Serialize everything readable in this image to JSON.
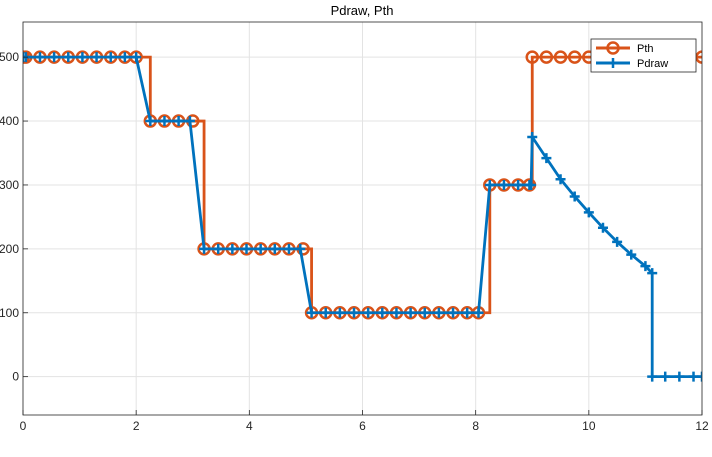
{
  "chart_data": {
    "type": "line",
    "title": "Pdraw, Pth",
    "xlabel": "",
    "ylabel": "",
    "xlim": [
      0,
      12
    ],
    "ylim": [
      -60,
      555
    ],
    "x_ticks": [
      0,
      2,
      4,
      6,
      8,
      10,
      12
    ],
    "y_ticks": [
      0,
      100,
      200,
      300,
      400,
      500
    ],
    "x_tick_labels": [
      "0",
      "2",
      "4",
      "6",
      "8",
      "10",
      "12"
    ],
    "y_tick_labels": [
      "0",
      "100",
      "200",
      "300",
      "400",
      "500"
    ],
    "grid": true,
    "legend_position": "top-right",
    "series": [
      {
        "name": "Pth",
        "color": "#D95319",
        "marker": "circle",
        "render": "stairs",
        "x": [
          0,
          0.05,
          0.3,
          0.55,
          0.8,
          1.05,
          1.3,
          1.55,
          1.8,
          2.0,
          2.25,
          2.5,
          2.75,
          3.0,
          3.2,
          3.45,
          3.7,
          3.95,
          4.2,
          4.45,
          4.7,
          4.95,
          5.1,
          5.35,
          5.6,
          5.85,
          6.1,
          6.35,
          6.6,
          6.85,
          7.1,
          7.35,
          7.6,
          7.85,
          8.05,
          8.25,
          8.5,
          8.75,
          8.95,
          9.0,
          9.25,
          9.5,
          9.75,
          10.0,
          10.25,
          11.8,
          12.0
        ],
        "y": [
          500,
          500,
          500,
          500,
          500,
          500,
          500,
          500,
          500,
          500,
          400,
          400,
          400,
          400,
          200,
          200,
          200,
          200,
          200,
          200,
          200,
          200,
          100,
          100,
          100,
          100,
          100,
          100,
          100,
          100,
          100,
          100,
          100,
          100,
          100,
          300,
          300,
          300,
          300,
          500,
          500,
          500,
          500,
          500,
          500,
          500,
          500
        ]
      },
      {
        "name": "Pdraw",
        "color": "#0072BD",
        "marker": "plus",
        "render": "line",
        "x": [
          0,
          0.05,
          0.3,
          0.55,
          0.8,
          1.05,
          1.3,
          1.55,
          1.8,
          2.0,
          2.25,
          2.5,
          2.75,
          2.95,
          3.2,
          3.45,
          3.7,
          3.95,
          4.2,
          4.45,
          4.7,
          4.9,
          5.1,
          5.35,
          5.6,
          5.85,
          6.1,
          6.35,
          6.6,
          6.85,
          7.1,
          7.35,
          7.6,
          7.85,
          8.05,
          8.25,
          8.5,
          8.75,
          8.95,
          8.98,
          9.0,
          9.25,
          9.5,
          9.75,
          10.0,
          10.25,
          10.5,
          10.75,
          11.0,
          11.12,
          11.12,
          11.35,
          11.6,
          11.85,
          12.0
        ],
        "y": [
          500,
          500,
          500,
          500,
          500,
          500,
          500,
          500,
          500,
          500,
          400,
          400,
          400,
          400,
          200,
          200,
          200,
          200,
          200,
          200,
          200,
          200,
          100,
          100,
          100,
          100,
          100,
          100,
          100,
          100,
          100,
          100,
          100,
          100,
          100,
          300,
          300,
          300,
          300,
          300,
          375,
          342,
          309,
          282,
          257,
          233,
          211,
          191,
          173,
          162,
          0,
          0,
          0,
          0,
          0
        ]
      }
    ]
  }
}
